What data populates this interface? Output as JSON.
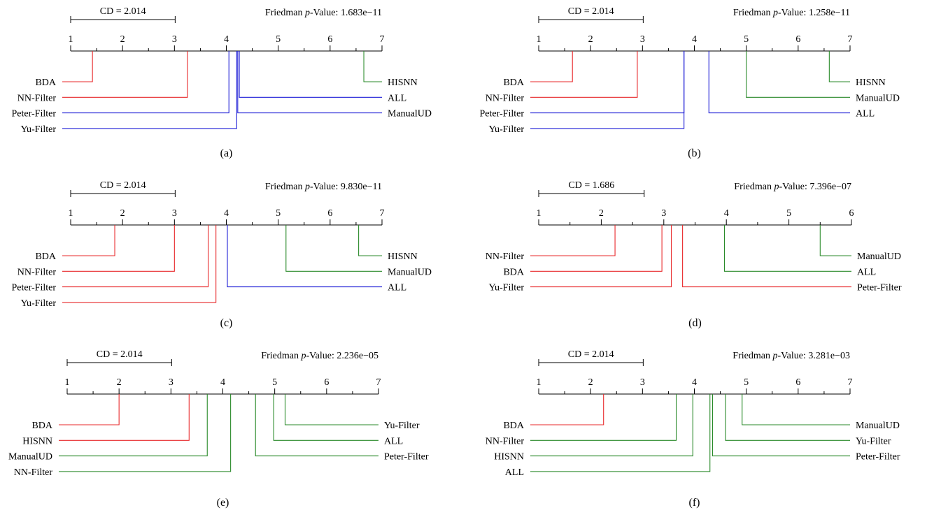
{
  "chart_data": [
    {
      "type": "critical-difference-diagram",
      "label": "(a)",
      "cd_text": "CD = 2.014",
      "cd_value": 2.014,
      "pvalue_prefix": "Friedman ",
      "pvalue_italic": "p",
      "pvalue_suffix": "-Value: 1.683e−11",
      "axis": {
        "min": 1,
        "max": 7,
        "ticks": [
          "1",
          "2",
          "3",
          "4",
          "5",
          "6",
          "7"
        ]
      },
      "left": [
        {
          "name": "BDA",
          "rank": 1.42,
          "color": "#e8292b"
        },
        {
          "name": "NN-Filter",
          "rank": 3.25,
          "color": "#e8292b"
        },
        {
          "name": "Peter-Filter",
          "rank": 4.05,
          "color": "#1f1fd6"
        },
        {
          "name": "Yu-Filter",
          "rank": 4.2,
          "color": "#1f1fd6"
        }
      ],
      "right": [
        {
          "name": "HISNN",
          "rank": 6.65,
          "color": "#2a8a2a"
        },
        {
          "name": "ALL",
          "rank": 4.25,
          "color": "#1f1fd6"
        },
        {
          "name": "ManualUD",
          "rank": 4.22,
          "color": "#1f1fd6"
        }
      ]
    },
    {
      "type": "critical-difference-diagram",
      "label": "(b)",
      "cd_text": "CD = 2.014",
      "cd_value": 2.014,
      "pvalue_prefix": "Friedman ",
      "pvalue_italic": "p",
      "pvalue_suffix": "-Value: 1.258e−11",
      "axis": {
        "min": 1,
        "max": 7,
        "ticks": [
          "1",
          "2",
          "3",
          "4",
          "5",
          "6",
          "7"
        ]
      },
      "left": [
        {
          "name": "BDA",
          "rank": 1.65,
          "color": "#e8292b"
        },
        {
          "name": "NN-Filter",
          "rank": 2.9,
          "color": "#e8292b"
        },
        {
          "name": "Peter-Filter",
          "rank": 3.8,
          "color": "#1f1fd6"
        },
        {
          "name": "Yu-Filter",
          "rank": 3.8,
          "color": "#1f1fd6"
        }
      ],
      "right": [
        {
          "name": "HISNN",
          "rank": 6.6,
          "color": "#2a8a2a"
        },
        {
          "name": "ManualUD",
          "rank": 5.0,
          "color": "#2a8a2a"
        },
        {
          "name": "ALL",
          "rank": 4.28,
          "color": "#1f1fd6"
        }
      ]
    },
    {
      "type": "critical-difference-diagram",
      "label": "(c)",
      "cd_text": "CD = 2.014",
      "cd_value": 2.014,
      "pvalue_prefix": "Friedman ",
      "pvalue_italic": "p",
      "pvalue_suffix": "-Value: 9.830e−11",
      "axis": {
        "min": 1,
        "max": 7,
        "ticks": [
          "1",
          "2",
          "3",
          "4",
          "5",
          "6",
          "7"
        ]
      },
      "left": [
        {
          "name": "BDA",
          "rank": 1.85,
          "color": "#e8292b"
        },
        {
          "name": "NN-Filter",
          "rank": 3.0,
          "color": "#e8292b"
        },
        {
          "name": "Peter-Filter",
          "rank": 3.65,
          "color": "#e8292b"
        },
        {
          "name": "Yu-Filter",
          "rank": 3.8,
          "color": "#e8292b"
        }
      ],
      "right": [
        {
          "name": "HISNN",
          "rank": 6.55,
          "color": "#2a8a2a"
        },
        {
          "name": "ManualUD",
          "rank": 5.15,
          "color": "#2a8a2a"
        },
        {
          "name": "ALL",
          "rank": 4.02,
          "color": "#1f1fd6"
        }
      ]
    },
    {
      "type": "critical-difference-diagram",
      "label": "(d)",
      "cd_text": "CD = 1.686",
      "cd_value": 1.686,
      "pvalue_prefix": "Friedman ",
      "pvalue_italic": "p",
      "pvalue_suffix": "-Value: 7.396e−07",
      "axis": {
        "min": 1,
        "max": 6,
        "ticks": [
          "1",
          "2",
          "3",
          "4",
          "5",
          "6"
        ]
      },
      "left": [
        {
          "name": "NN-Filter",
          "rank": 2.22,
          "color": "#e8292b"
        },
        {
          "name": "BDA",
          "rank": 2.97,
          "color": "#e8292b"
        },
        {
          "name": "Yu-Filter",
          "rank": 3.12,
          "color": "#e8292b"
        }
      ],
      "right": [
        {
          "name": "ManualUD",
          "rank": 5.5,
          "color": "#2a8a2a"
        },
        {
          "name": "ALL",
          "rank": 3.97,
          "color": "#2a8a2a"
        },
        {
          "name": "Peter-Filter",
          "rank": 3.3,
          "color": "#e8292b"
        }
      ]
    },
    {
      "type": "critical-difference-diagram",
      "label": "(e)",
      "cd_text": "CD = 2.014",
      "cd_value": 2.014,
      "pvalue_prefix": "Friedman ",
      "pvalue_italic": "p",
      "pvalue_suffix": "-Value: 2.236e−05",
      "axis": {
        "min": 1,
        "max": 7,
        "ticks": [
          "1",
          "2",
          "3",
          "4",
          "5",
          "6",
          "7"
        ]
      },
      "left": [
        {
          "name": "BDA",
          "rank": 2.0,
          "color": "#e8292b"
        },
        {
          "name": "HISNN",
          "rank": 3.35,
          "color": "#e8292b"
        },
        {
          "name": "ManualUD",
          "rank": 3.7,
          "color": "#2a8a2a"
        },
        {
          "name": "NN-Filter",
          "rank": 4.15,
          "color": "#2a8a2a"
        }
      ],
      "right": [
        {
          "name": "Yu-Filter",
          "rank": 5.2,
          "color": "#2a8a2a"
        },
        {
          "name": "ALL",
          "rank": 4.98,
          "color": "#2a8a2a"
        },
        {
          "name": "Peter-Filter",
          "rank": 4.63,
          "color": "#2a8a2a"
        }
      ]
    },
    {
      "type": "critical-difference-diagram",
      "label": "(f)",
      "cd_text": "CD = 2.014",
      "cd_value": 2.014,
      "pvalue_prefix": "Friedman ",
      "pvalue_italic": "p",
      "pvalue_suffix": "-Value: 3.281e−03",
      "axis": {
        "min": 1,
        "max": 7,
        "ticks": [
          "1",
          "2",
          "3",
          "4",
          "5",
          "6",
          "7"
        ]
      },
      "left": [
        {
          "name": "BDA",
          "rank": 2.25,
          "color": "#e8292b"
        },
        {
          "name": "NN-Filter",
          "rank": 3.65,
          "color": "#2a8a2a"
        },
        {
          "name": "HISNN",
          "rank": 3.97,
          "color": "#2a8a2a"
        },
        {
          "name": "ALL",
          "rank": 4.3,
          "color": "#2a8a2a"
        }
      ],
      "right": [
        {
          "name": "ManualUD",
          "rank": 4.92,
          "color": "#2a8a2a"
        },
        {
          "name": "Yu-Filter",
          "rank": 4.6,
          "color": "#2a8a2a"
        },
        {
          "name": "Peter-Filter",
          "rank": 4.35,
          "color": "#2a8a2a"
        }
      ]
    }
  ]
}
